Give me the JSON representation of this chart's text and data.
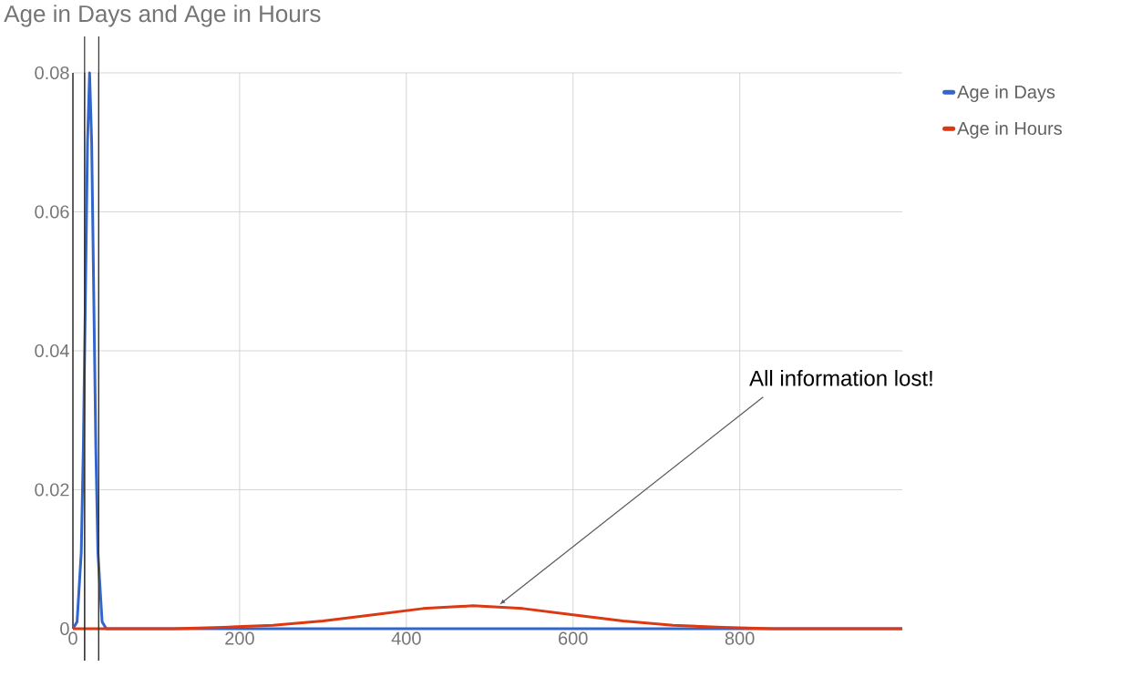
{
  "chart_data": {
    "type": "line",
    "title": "Age in Days and Age in Hours",
    "series": [
      {
        "name": "Age in Days",
        "color": "#3366cc",
        "x": [
          0,
          5,
          10,
          12.5,
          15,
          17.5,
          20,
          22.5,
          25,
          27.5,
          30,
          35,
          40,
          995
        ],
        "values": [
          0,
          0.001,
          0.011,
          0.026,
          0.048,
          0.07,
          0.08,
          0.07,
          0.048,
          0.026,
          0.011,
          0.001,
          0,
          0
        ]
      },
      {
        "name": "Age in Hours",
        "color": "#dc3912",
        "x": [
          0,
          120,
          180,
          240,
          300,
          360,
          420,
          480,
          540,
          600,
          660,
          720,
          780,
          840,
          995
        ],
        "values": [
          0,
          0,
          0.0002,
          0.0005,
          0.0011,
          0.002,
          0.0029,
          0.0033,
          0.0029,
          0.002,
          0.0011,
          0.0005,
          0.0002,
          0,
          0
        ]
      }
    ],
    "xlim": [
      0,
      995
    ],
    "ylim": [
      0,
      0.08
    ],
    "xticks": [
      0,
      200,
      400,
      600,
      800
    ],
    "yticks": [
      0,
      0.02,
      0.04,
      0.06,
      0.08
    ],
    "ref_lines": [
      {
        "axis": "x",
        "value": 14,
        "color": "#333333"
      },
      {
        "axis": "x",
        "value": 31,
        "color": "#333333"
      }
    ],
    "annotations": [
      {
        "text": "All information lost!",
        "x": 510,
        "y": 0.0033
      }
    ],
    "grid": true,
    "legend": "right",
    "marker": "none",
    "line_style": "solid"
  }
}
